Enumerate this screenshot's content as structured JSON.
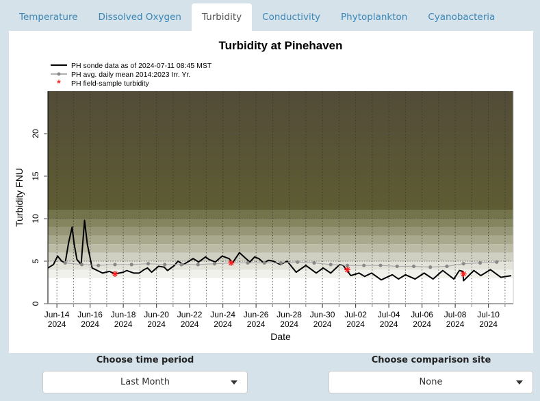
{
  "tabs": [
    {
      "label": "Temperature",
      "active": false
    },
    {
      "label": "Dissolved Oxygen",
      "active": false
    },
    {
      "label": "Turbidity",
      "active": true
    },
    {
      "label": "Conductivity",
      "active": false
    },
    {
      "label": "Phytoplankton",
      "active": false
    },
    {
      "label": "Cyanobacteria",
      "active": false
    }
  ],
  "controls": {
    "time_period": {
      "label": "Choose time period",
      "value": "Last Month"
    },
    "comparison_site": {
      "label": "Choose comparison site",
      "value": "None"
    }
  },
  "chart_data": {
    "type": "line",
    "title": "Turbidity at Pinehaven",
    "xlabel": "Date",
    "ylabel": "Turbidity FNU",
    "xlim": [
      "2024-06-13T11:00",
      "2024-07-11T12:00"
    ],
    "ylim": [
      0,
      25
    ],
    "yticks": [
      0,
      5,
      10,
      15,
      20
    ],
    "xticks": [
      {
        "date": "2024-06-14",
        "label": [
          "Jun-14",
          "2024"
        ]
      },
      {
        "date": "2024-06-16",
        "label": [
          "Jun-16",
          "2024"
        ]
      },
      {
        "date": "2024-06-18",
        "label": [
          "Jun-18",
          "2024"
        ]
      },
      {
        "date": "2024-06-20",
        "label": [
          "Jun-20",
          "2024"
        ]
      },
      {
        "date": "2024-06-22",
        "label": [
          "Jun-22",
          "2024"
        ]
      },
      {
        "date": "2024-06-24",
        "label": [
          "Jun-24",
          "2024"
        ]
      },
      {
        "date": "2024-06-26",
        "label": [
          "Jun-26",
          "2024"
        ]
      },
      {
        "date": "2024-06-28",
        "label": [
          "Jun-28",
          "2024"
        ]
      },
      {
        "date": "2024-06-30",
        "label": [
          "Jun-30",
          "2024"
        ]
      },
      {
        "date": "2024-07-02",
        "label": [
          "Jul-02",
          "2024"
        ]
      },
      {
        "date": "2024-07-04",
        "label": [
          "Jul-04",
          "2024"
        ]
      },
      {
        "date": "2024-07-06",
        "label": [
          "Jul-06",
          "2024"
        ]
      },
      {
        "date": "2024-07-08",
        "label": [
          "Jul-08",
          "2024"
        ]
      },
      {
        "date": "2024-07-10",
        "label": [
          "Jul-10",
          "2024"
        ]
      }
    ],
    "grid": "dotted daily verticals; dotted horizontals at y ticks",
    "background_bands": {
      "from": 3,
      "to": 11,
      "step": 1,
      "colors": [
        "#f1f1ec",
        "#e3e3da",
        "#d0d0c2",
        "#bcbca6",
        "#a9a98d",
        "#969676",
        "#85855f",
        "#74744c"
      ],
      "above_color_low": "#5e5c33",
      "above_color_high": "#524c38"
    },
    "legend": {
      "placement": "top-left",
      "entries": [
        "PH sonde data as of 2024-07-11 08:45 MST",
        "PH avg. daily mean 2014:2023 Irr. Yr.",
        "PH field-sample turbidity"
      ]
    },
    "series": [
      {
        "name": "PH sonde data as of 2024-07-11 08:45 MST",
        "color": "#000000",
        "style": "line",
        "points": [
          [
            "2024-06-13T11:00",
            4.2
          ],
          [
            "2024-06-13T19:00",
            4.6
          ],
          [
            "2024-06-14T01:00",
            5.6
          ],
          [
            "2024-06-14T07:00",
            5.0
          ],
          [
            "2024-06-14T12:00",
            4.8
          ],
          [
            "2024-06-14T17:00",
            7.2
          ],
          [
            "2024-06-14T22:00",
            9.0
          ],
          [
            "2024-06-15T01:00",
            7.0
          ],
          [
            "2024-06-15T05:00",
            5.2
          ],
          [
            "2024-06-15T11:00",
            4.6
          ],
          [
            "2024-06-15T16:00",
            9.8
          ],
          [
            "2024-06-15T20:00",
            7.0
          ],
          [
            "2024-06-16T03:00",
            4.2
          ],
          [
            "2024-06-16T13:00",
            3.8
          ],
          [
            "2024-06-16T18:00",
            3.6
          ],
          [
            "2024-06-17T04:00",
            3.8
          ],
          [
            "2024-06-17T12:00",
            3.5
          ],
          [
            "2024-06-18T00:00",
            3.7
          ],
          [
            "2024-06-18T05:00",
            3.9
          ],
          [
            "2024-06-18T15:00",
            3.6
          ],
          [
            "2024-06-18T23:00",
            3.6
          ],
          [
            "2024-06-19T06:00",
            4.0
          ],
          [
            "2024-06-19T11:00",
            4.2
          ],
          [
            "2024-06-19T17:00",
            3.7
          ],
          [
            "2024-06-20T03:00",
            4.4
          ],
          [
            "2024-06-20T11:00",
            4.3
          ],
          [
            "2024-06-20T16:00",
            3.9
          ],
          [
            "2024-06-21T02:00",
            4.5
          ],
          [
            "2024-06-21T07:00",
            5.0
          ],
          [
            "2024-06-21T15:00",
            4.6
          ],
          [
            "2024-06-21T23:00",
            5.0
          ],
          [
            "2024-06-22T05:00",
            5.3
          ],
          [
            "2024-06-22T13:00",
            4.9
          ],
          [
            "2024-06-22T23:00",
            5.5
          ],
          [
            "2024-06-23T04:00",
            5.2
          ],
          [
            "2024-06-23T13:00",
            4.9
          ],
          [
            "2024-06-23T23:00",
            5.6
          ],
          [
            "2024-06-24T09:00",
            5.3
          ],
          [
            "2024-06-24T14:00",
            4.8
          ],
          [
            "2024-06-25T00:00",
            6.0
          ],
          [
            "2024-06-25T08:00",
            5.4
          ],
          [
            "2024-06-25T15:00",
            4.9
          ],
          [
            "2024-06-25T22:00",
            5.5
          ],
          [
            "2024-06-26T04:00",
            5.3
          ],
          [
            "2024-06-26T11:00",
            4.8
          ],
          [
            "2024-06-26T18:00",
            5.1
          ],
          [
            "2024-06-27T01:00",
            5.0
          ],
          [
            "2024-06-27T11:00",
            4.6
          ],
          [
            "2024-06-27T21:00",
            5.0
          ],
          [
            "2024-06-28T10:00",
            3.7
          ],
          [
            "2024-06-29T00:00",
            4.5
          ],
          [
            "2024-06-29T15:00",
            3.6
          ],
          [
            "2024-06-30T01:00",
            4.2
          ],
          [
            "2024-06-30T12:00",
            3.6
          ],
          [
            "2024-07-01T01:00",
            4.6
          ],
          [
            "2024-07-01T06:00",
            4.5
          ],
          [
            "2024-07-01T17:00",
            3.3
          ],
          [
            "2024-07-02T05:00",
            3.6
          ],
          [
            "2024-07-02T13:00",
            3.2
          ],
          [
            "2024-07-02T23:00",
            3.6
          ],
          [
            "2024-07-03T13:00",
            2.8
          ],
          [
            "2024-07-04T05:00",
            3.4
          ],
          [
            "2024-07-04T14:00",
            2.9
          ],
          [
            "2024-07-05T00:00",
            3.4
          ],
          [
            "2024-07-05T14:00",
            2.9
          ],
          [
            "2024-07-06T03:00",
            3.6
          ],
          [
            "2024-07-06T16:00",
            2.9
          ],
          [
            "2024-07-07T06:00",
            3.9
          ],
          [
            "2024-07-07T22:00",
            2.9
          ],
          [
            "2024-07-08T06:00",
            3.9
          ],
          [
            "2024-07-08T11:00",
            3.8
          ],
          [
            "2024-07-08T12:00",
            2.7
          ],
          [
            "2024-07-09T03:00",
            3.9
          ],
          [
            "2024-07-09T13:00",
            3.3
          ],
          [
            "2024-07-10T03:00",
            4.0
          ],
          [
            "2024-07-10T18:00",
            3.1
          ],
          [
            "2024-07-11T09:00",
            3.3
          ]
        ]
      },
      {
        "name": "PH avg. daily mean 2014:2023 Irr. Yr.",
        "color": "#888888",
        "style": "line-points",
        "points": [
          [
            "2024-06-14T12:00",
            4.8
          ],
          [
            "2024-06-15T12:00",
            4.6
          ],
          [
            "2024-06-16T12:00",
            4.5
          ],
          [
            "2024-06-17T12:00",
            4.6
          ],
          [
            "2024-06-18T12:00",
            4.6
          ],
          [
            "2024-06-19T12:00",
            4.7
          ],
          [
            "2024-06-20T12:00",
            4.6
          ],
          [
            "2024-06-21T12:00",
            4.6
          ],
          [
            "2024-06-22T12:00",
            4.6
          ],
          [
            "2024-06-23T12:00",
            4.7
          ],
          [
            "2024-06-24T12:00",
            4.8
          ],
          [
            "2024-06-25T12:00",
            4.8
          ],
          [
            "2024-06-26T12:00",
            4.8
          ],
          [
            "2024-06-27T12:00",
            4.8
          ],
          [
            "2024-06-28T12:00",
            4.9
          ],
          [
            "2024-06-29T12:00",
            4.8
          ],
          [
            "2024-06-30T12:00",
            4.6
          ],
          [
            "2024-07-01T12:00",
            4.5
          ],
          [
            "2024-07-02T12:00",
            4.5
          ],
          [
            "2024-07-03T12:00",
            4.5
          ],
          [
            "2024-07-04T12:00",
            4.4
          ],
          [
            "2024-07-05T12:00",
            4.4
          ],
          [
            "2024-07-06T12:00",
            4.3
          ],
          [
            "2024-07-07T12:00",
            4.4
          ],
          [
            "2024-07-08T12:00",
            4.7
          ],
          [
            "2024-07-09T12:00",
            4.8
          ],
          [
            "2024-07-10T12:00",
            4.9
          ]
        ]
      },
      {
        "name": "PH field-sample turbidity",
        "color": "#ff2020",
        "style": "asterisk",
        "points": [
          [
            "2024-06-17T12:00",
            3.5
          ],
          [
            "2024-06-24T12:00",
            4.8
          ],
          [
            "2024-07-01T12:00",
            4.0
          ],
          [
            "2024-07-08T12:00",
            3.5
          ]
        ]
      }
    ]
  }
}
